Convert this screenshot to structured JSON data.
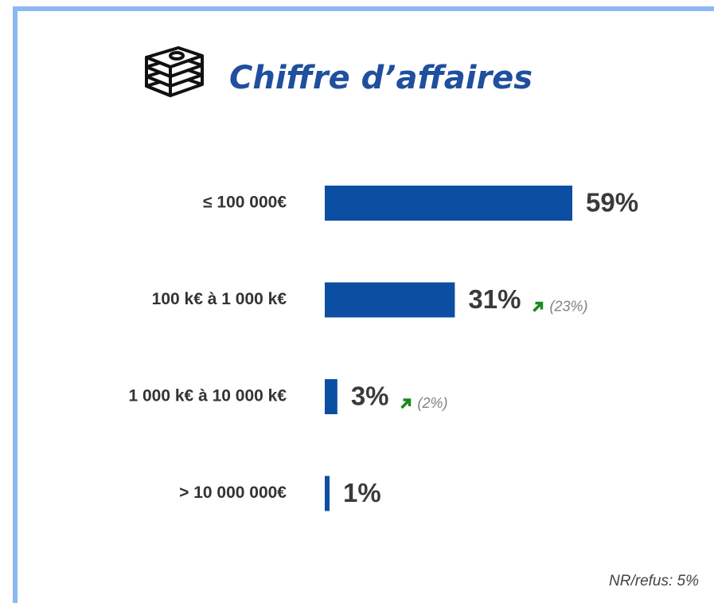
{
  "chart_data": {
    "type": "bar",
    "orientation": "horizontal",
    "title": "Chiffre d’affaires",
    "categories": [
      "≤ 100 000€",
      "100 k€ à 1 000 k€",
      "1 000 k€ à 10 000 k€",
      "> 10 000 000€"
    ],
    "values": [
      59,
      31,
      3,
      1
    ],
    "value_labels": [
      "59%",
      "31%",
      "3%",
      "1%"
    ],
    "previous_labels": [
      null,
      "(23%)",
      "(2%)",
      null
    ],
    "color": "#0b4ea2",
    "note": "NR/refus: 5%"
  }
}
